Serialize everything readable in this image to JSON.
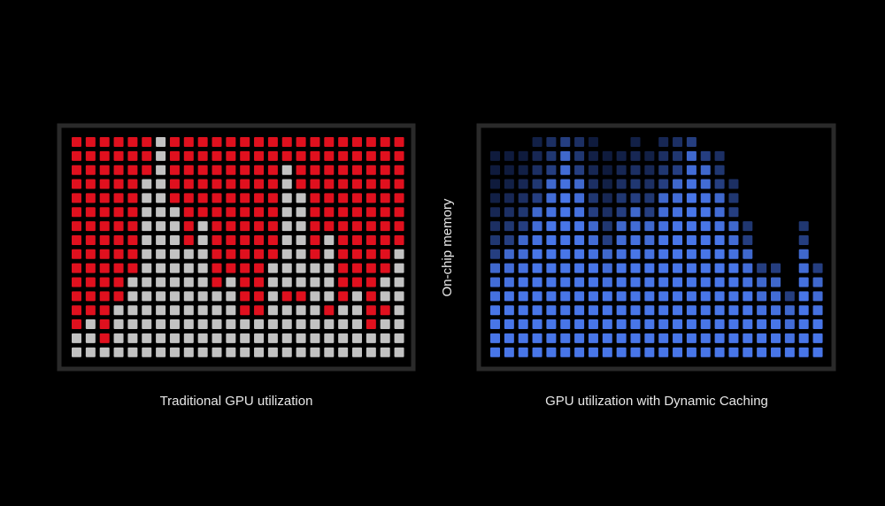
{
  "left_panel": {
    "caption": "Traditional GPU utilization"
  },
  "right_panel": {
    "caption": "GPU utilization with Dynamic Caching"
  },
  "axis_label": "On-chip memory"
}
